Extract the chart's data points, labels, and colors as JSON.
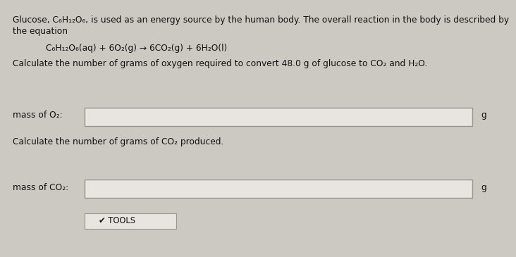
{
  "background_color": "#ccc8c2",
  "line1": "Glucose, C₆H₁₂O₆, is used as an energy source by the human body. The overall reaction in the body is described by",
  "line2": "the equation",
  "equation": "C₆H₁₂O₆(aq) + 6O₂(g) → 6CO₂(g) + 6H₂O(l)",
  "question1": "Calculate the number of grams of oxygen required to convert 48.0 g of glucose to CO₂ and H₂O.",
  "label1": "mass of O₂:",
  "unit1": "g",
  "question2": "Calculate the number of grams of CO₂ produced.",
  "label2": "mass of CO₂:",
  "unit2": "g",
  "tools_label": "✔ TOOLS",
  "box_facecolor": "#e8e4df",
  "box_edgecolor": "#999490",
  "text_color": "#111111",
  "fontsize_body": 8.8
}
